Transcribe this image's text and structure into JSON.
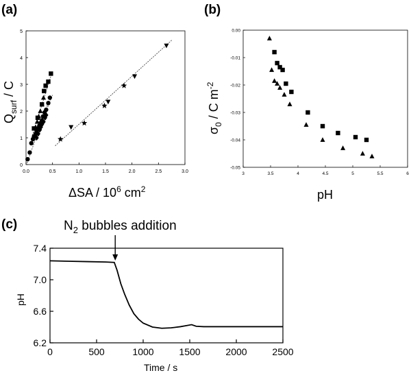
{
  "chart_data": [
    {
      "panel": "(a)",
      "type": "scatter",
      "xlabel": "ΔSA / 10",
      "xlabel_sup": "6",
      "xlabel_unit": " cm",
      "xlabel_sup2": "2",
      "ylabel": "Q",
      "ylabel_sub": "surf",
      "ylabel_unit": " / C",
      "xlim": [
        0,
        3.0
      ],
      "ylim": [
        0,
        5
      ],
      "xticks": [
        "0.0",
        "0.5",
        "1.0",
        "1.5",
        "2.0",
        "2.5",
        "3.0"
      ],
      "yticks": [
        "0",
        "1",
        "2",
        "3",
        "4",
        "5"
      ],
      "series": [
        {
          "name": "circles",
          "marker": "circle",
          "x": [
            0.03,
            0.07,
            0.1,
            0.13,
            0.15,
            0.18,
            0.2,
            0.22,
            0.25,
            0.27,
            0.3,
            0.32,
            0.35,
            0.38,
            0.42,
            0.45
          ],
          "y": [
            0.2,
            0.45,
            0.8,
            0.95,
            1.05,
            1.15,
            1.25,
            1.35,
            1.45,
            1.55,
            1.65,
            1.8,
            1.95,
            2.05,
            2.3,
            2.5
          ]
        },
        {
          "name": "diamonds",
          "marker": "diamond",
          "x": [
            0.2,
            0.23,
            0.26,
            0.28,
            0.3,
            0.33,
            0.36,
            0.38
          ],
          "y": [
            1.0,
            1.15,
            1.3,
            1.4,
            1.5,
            1.6,
            1.75,
            1.85
          ]
        },
        {
          "name": "triangles-up",
          "marker": "triangle-up",
          "x": [
            0.18,
            0.21,
            0.24,
            0.27,
            0.3,
            0.33
          ],
          "y": [
            1.4,
            1.6,
            1.8,
            2.0,
            2.25,
            2.5
          ]
        },
        {
          "name": "squares",
          "marker": "square",
          "x": [
            0.15,
            0.22,
            0.3,
            0.34,
            0.37,
            0.42,
            0.47
          ],
          "y": [
            1.35,
            1.75,
            2.25,
            2.75,
            2.95,
            3.1,
            3.4
          ]
        },
        {
          "name": "stars",
          "marker": "star",
          "x": [
            0.65,
            1.1,
            1.48,
            1.85
          ],
          "y": [
            0.95,
            1.55,
            2.2,
            2.95
          ]
        },
        {
          "name": "triangles-down",
          "marker": "triangle-down",
          "x": [
            0.85,
            1.55,
            2.05,
            2.65
          ],
          "y": [
            1.4,
            2.35,
            3.3,
            4.45
          ]
        }
      ],
      "fit_lines": [
        {
          "x": [
            0.02,
            0.46
          ],
          "y": [
            0.05,
            2.55
          ]
        },
        {
          "x": [
            0.16,
            0.5
          ],
          "y": [
            0.9,
            2.6
          ]
        },
        {
          "x": [
            0.12,
            0.5
          ],
          "y": [
            1.1,
            3.5
          ]
        },
        {
          "x": [
            0.55,
            2.75
          ],
          "y": [
            0.7,
            4.65
          ]
        }
      ]
    },
    {
      "panel": "(b)",
      "type": "scatter",
      "xlabel": "pH",
      "ylabel": "σ",
      "ylabel_sub": "0",
      "ylabel_unit": " / C m",
      "ylabel_sup": "-2",
      "xlim": [
        3,
        6
      ],
      "ylim": [
        -0.05,
        0.0
      ],
      "xticks": [
        "3",
        "3.5",
        "4",
        "4.5",
        "5",
        "5.5",
        "6"
      ],
      "yticks": [
        "0.00",
        "-0.01",
        "-0.02",
        "-0.03",
        "-0.04",
        "-0.05"
      ],
      "series": [
        {
          "name": "squares",
          "marker": "square",
          "x": [
            3.57,
            3.62,
            3.67,
            3.72,
            3.78,
            3.88,
            4.18,
            4.45,
            4.73,
            5.05,
            5.25
          ],
          "y": [
            -0.008,
            -0.012,
            -0.0135,
            -0.0145,
            -0.0195,
            -0.0225,
            -0.03,
            -0.035,
            -0.0375,
            -0.039,
            -0.04
          ]
        },
        {
          "name": "triangles",
          "marker": "triangle",
          "x": [
            3.48,
            3.52,
            3.57,
            3.62,
            3.67,
            3.75,
            3.85,
            4.15,
            4.45,
            4.82,
            5.18,
            5.35
          ],
          "y": [
            -0.003,
            -0.0145,
            -0.0185,
            -0.0195,
            -0.021,
            -0.0235,
            -0.027,
            -0.0345,
            -0.04,
            -0.043,
            -0.045,
            -0.046
          ]
        }
      ]
    },
    {
      "panel": "(c)",
      "type": "line",
      "xlabel": "Time / s",
      "ylabel": "pH",
      "xlim": [
        0,
        2500
      ],
      "ylim": [
        6.2,
        7.4
      ],
      "xticks": [
        "0",
        "500",
        "1000",
        "1500",
        "2000",
        "2500"
      ],
      "yticks": [
        "6.2",
        "6.6",
        "7.0",
        "7.4"
      ],
      "annotation": {
        "text": "N",
        "sub": "2",
        "rest": " bubbles addition",
        "x": 700
      },
      "series": [
        {
          "name": "pH",
          "x": [
            0,
            200,
            400,
            600,
            690,
            720,
            760,
            800,
            850,
            900,
            950,
            1000,
            1100,
            1200,
            1300,
            1400,
            1470,
            1520,
            1570,
            1650,
            1800,
            2000,
            2200,
            2400,
            2500
          ],
          "y": [
            7.24,
            7.235,
            7.23,
            7.225,
            7.22,
            7.12,
            6.95,
            6.82,
            6.68,
            6.57,
            6.5,
            6.45,
            6.4,
            6.385,
            6.39,
            6.405,
            6.42,
            6.43,
            6.41,
            6.405,
            6.405,
            6.405,
            6.405,
            6.405,
            6.405
          ]
        }
      ]
    }
  ]
}
